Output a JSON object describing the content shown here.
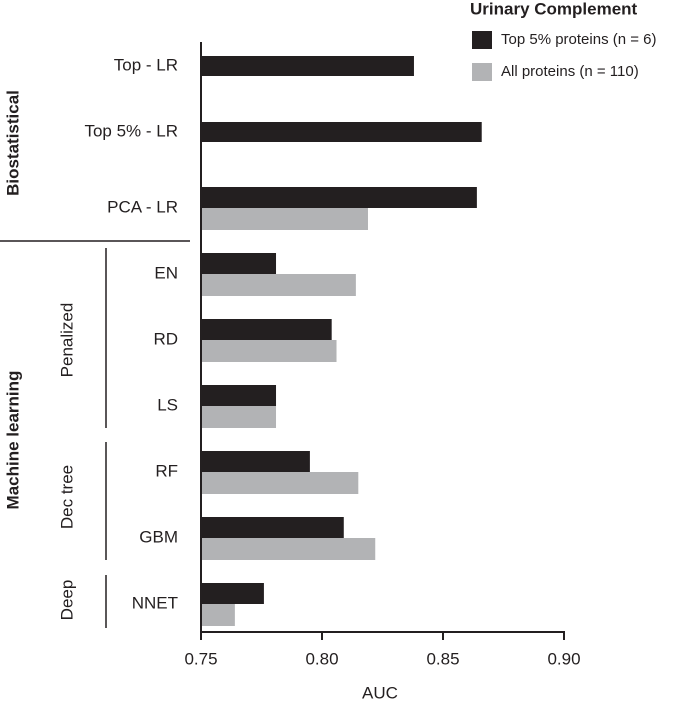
{
  "chart_data": {
    "type": "hbar",
    "x_label": "AUC",
    "legend_title": "Urinary Complement",
    "categories": [
      "Top - LR",
      "Top 5% - LR",
      "PCA - LR",
      "EN",
      "RD",
      "LS",
      "RF",
      "GBM",
      "NNET"
    ],
    "groups": [
      "Biostatistical",
      "Machine learning"
    ],
    "subgroups": [
      "Penalized",
      "Dec tree",
      "Deep"
    ],
    "series": [
      {
        "name": "Top 5% proteins (n = 6)",
        "color": "#231f20",
        "values": [
          0.838,
          0.866,
          0.864,
          0.781,
          0.804,
          0.781,
          0.795,
          0.809,
          0.776
        ]
      },
      {
        "name": "All proteins (n = 110)",
        "color": "#b2b3b5",
        "values": [
          null,
          null,
          0.819,
          0.814,
          0.806,
          0.781,
          0.815,
          0.822,
          0.764
        ]
      }
    ],
    "xlim": [
      0.75,
      0.9
    ],
    "xticks": [
      0.75,
      {
        "value": 0.8,
        "label": "0.80"
      },
      0.85,
      {
        "value": 0.9,
        "label": "0.90"
      }
    ]
  }
}
